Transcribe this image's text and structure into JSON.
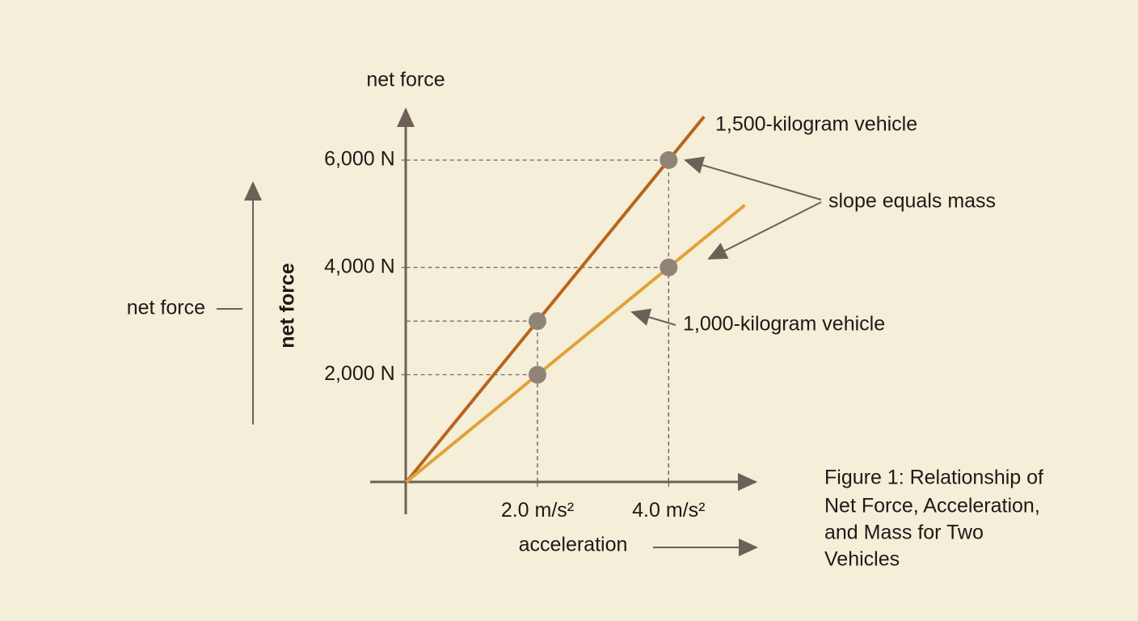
{
  "chart_data": {
    "type": "line",
    "y_label": "net force",
    "y_axis_title": "net force",
    "side_label": "net force",
    "x_label": "acceleration",
    "annotation": "slope equals mass",
    "caption": [
      "Figure 1: Relationship of",
      "Net Force, Acceleration,",
      "and Mass for Two",
      "Vehicles"
    ],
    "series": [
      {
        "name": "1,500-kilogram vehicle",
        "color": "#b8651c",
        "x": [
          0,
          4.54
        ],
        "values": [
          0,
          6810
        ]
      },
      {
        "name": "1,000-kilogram vehicle",
        "color": "#e0a338",
        "x": [
          0,
          5.16
        ],
        "values": [
          0,
          5160
        ]
      }
    ],
    "points": {
      "color": "#908478",
      "x": [
        2,
        4,
        2,
        4
      ],
      "y": [
        3000,
        6000,
        2000,
        4000
      ]
    },
    "xlim": [
      -0.55,
      5.45
    ],
    "ylim": [
      -600,
      7100
    ],
    "xticks": [
      {
        "value": 2,
        "label": "2.0 m/s²"
      },
      {
        "value": 4,
        "label": "4.0 m/s²"
      }
    ],
    "yticks": [
      {
        "value": 2000,
        "label": "2,000 N"
      },
      {
        "value": 4000,
        "label": "4,000 N"
      },
      {
        "value": 6000,
        "label": "6,000 N"
      }
    ]
  }
}
